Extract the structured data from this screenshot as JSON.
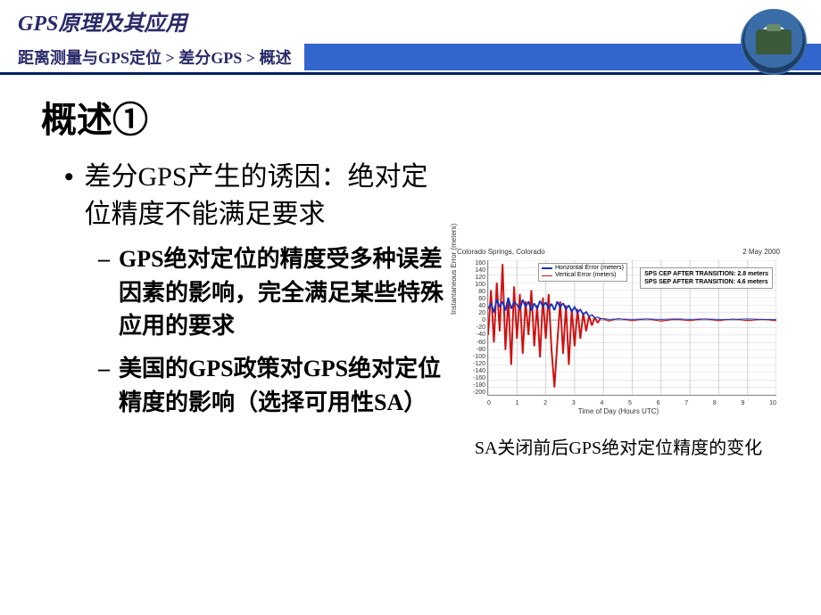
{
  "header": {
    "title": "GPS原理及其应用",
    "breadcrumb": "距离测量与GPS定位 > 差分GPS >  概述"
  },
  "slide": {
    "title": "概述①",
    "bullet1": "差分GPS产生的诱因：绝对定位精度不能满足要求",
    "sub1": "GPS绝对定位的精度受多种误差因素的影响，完全满足某些特殊应用的要求",
    "sub2": "美国的GPS政策对GPS绝对定位精度的影响（选择可用性SA）"
  },
  "chart": {
    "type": "line",
    "title_left": "Colorado Springs, Colorado",
    "title_right": "2 May 2000",
    "legend": {
      "series1": {
        "label": "Horizontal Error (meters)",
        "color": "#1030c0"
      },
      "series2": {
        "label": "Vertical Error (meters)",
        "color": "#d01010"
      }
    },
    "stats": {
      "line1": "SPS CEP AFTER TRANSITION:  2.8 meters",
      "line2": "SPS SEP AFTER TRANSITION:  4.6 meters"
    },
    "ylabel": "Instantaneous Error (meters)",
    "xlabel": "Time of Day (Hours UTC)",
    "ylim": [
      -200,
      160
    ],
    "yticks": [
      "160",
      "140",
      "120",
      "100",
      "80",
      "60",
      "40",
      "20",
      "0",
      "-20",
      "-40",
      "-60",
      "-80",
      "-100",
      "-120",
      "-140",
      "-160",
      "-180",
      "-200"
    ],
    "xlim": [
      0,
      10
    ],
    "xticks": [
      "0",
      "1",
      "2",
      "3",
      "4",
      "5",
      "6",
      "7",
      "8",
      "9",
      "10"
    ],
    "grid_color": "#d0d0d0",
    "background_color": "#ffffff",
    "caption": "SA关闭前后GPS绝对定位精度的变化",
    "series_blue": [
      [
        0,
        30
      ],
      [
        0.1,
        45
      ],
      [
        0.2,
        20
      ],
      [
        0.3,
        55
      ],
      [
        0.4,
        35
      ],
      [
        0.5,
        50
      ],
      [
        0.6,
        25
      ],
      [
        0.7,
        60
      ],
      [
        0.8,
        30
      ],
      [
        0.9,
        48
      ],
      [
        1.0,
        42
      ],
      [
        1.1,
        28
      ],
      [
        1.2,
        55
      ],
      [
        1.3,
        35
      ],
      [
        1.4,
        50
      ],
      [
        1.5,
        25
      ],
      [
        1.6,
        45
      ],
      [
        1.7,
        30
      ],
      [
        1.8,
        52
      ],
      [
        1.9,
        36
      ],
      [
        2.0,
        48
      ],
      [
        2.1,
        30
      ],
      [
        2.2,
        44
      ],
      [
        2.3,
        26
      ],
      [
        2.4,
        50
      ],
      [
        2.5,
        34
      ],
      [
        2.6,
        46
      ],
      [
        2.7,
        28
      ],
      [
        2.8,
        40
      ],
      [
        2.9,
        22
      ],
      [
        3.0,
        35
      ],
      [
        3.1,
        20
      ],
      [
        3.2,
        28
      ],
      [
        3.3,
        15
      ],
      [
        3.4,
        22
      ],
      [
        3.5,
        10
      ],
      [
        3.6,
        14
      ],
      [
        3.7,
        6
      ],
      [
        3.8,
        8
      ],
      [
        3.9,
        3
      ],
      [
        4.0,
        4
      ],
      [
        4.2,
        2
      ],
      [
        4.5,
        3
      ],
      [
        5.0,
        2
      ],
      [
        5.5,
        3
      ],
      [
        6.0,
        2
      ],
      [
        6.5,
        3
      ],
      [
        7.0,
        2
      ],
      [
        7.5,
        3
      ],
      [
        8.0,
        2
      ],
      [
        8.5,
        2
      ],
      [
        9.0,
        3
      ],
      [
        9.5,
        2
      ],
      [
        10.0,
        2
      ]
    ],
    "series_red": [
      [
        0,
        -40
      ],
      [
        0.1,
        80
      ],
      [
        0.2,
        -60
      ],
      [
        0.3,
        100
      ],
      [
        0.4,
        -30
      ],
      [
        0.5,
        150
      ],
      [
        0.6,
        -80
      ],
      [
        0.7,
        60
      ],
      [
        0.8,
        -120
      ],
      [
        0.9,
        90
      ],
      [
        1.0,
        -50
      ],
      [
        1.1,
        70
      ],
      [
        1.2,
        -90
      ],
      [
        1.3,
        50
      ],
      [
        1.4,
        -40
      ],
      [
        1.5,
        80
      ],
      [
        1.6,
        -70
      ],
      [
        1.7,
        40
      ],
      [
        1.8,
        -100
      ],
      [
        1.9,
        60
      ],
      [
        2.0,
        -50
      ],
      [
        2.1,
        70
      ],
      [
        2.2,
        -80
      ],
      [
        2.3,
        -180
      ],
      [
        2.4,
        -60
      ],
      [
        2.5,
        50
      ],
      [
        2.6,
        -90
      ],
      [
        2.7,
        40
      ],
      [
        2.8,
        -120
      ],
      [
        2.9,
        30
      ],
      [
        3.0,
        -70
      ],
      [
        3.1,
        30
      ],
      [
        3.2,
        -50
      ],
      [
        3.3,
        20
      ],
      [
        3.4,
        -30
      ],
      [
        3.5,
        12
      ],
      [
        3.6,
        -15
      ],
      [
        3.7,
        8
      ],
      [
        3.8,
        -8
      ],
      [
        3.9,
        5
      ],
      [
        4.0,
        3
      ],
      [
        4.2,
        -3
      ],
      [
        4.5,
        4
      ],
      [
        5.0,
        -2
      ],
      [
        5.5,
        3
      ],
      [
        6.0,
        -3
      ],
      [
        6.5,
        2
      ],
      [
        7.0,
        -2
      ],
      [
        7.5,
        3
      ],
      [
        8.0,
        -2
      ],
      [
        8.5,
        3
      ],
      [
        9.0,
        -2
      ],
      [
        9.5,
        2
      ],
      [
        10.0,
        -2
      ]
    ]
  },
  "colors": {
    "header_text": "#2a2a6a",
    "breadcrumb_bar": "#3366cc",
    "divider": "#002060"
  }
}
